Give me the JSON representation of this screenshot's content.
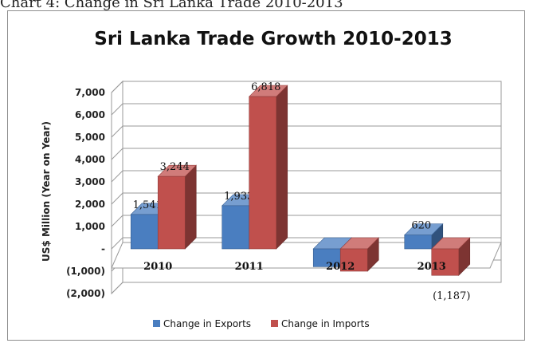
{
  "caption": "Chart 4: Change in Sri Lanka Trade 2010-2013",
  "chart_data": {
    "type": "bar",
    "title": "Sri Lanka Trade Growth 2010-2013",
    "xlabel": "",
    "ylabel": "US$ Million (Year on Year)",
    "categories": [
      "2010",
      "2011",
      "2012",
      "2013"
    ],
    "series": [
      {
        "name": "Change in Exports",
        "values": [
          1541,
          1933,
          -800,
          620
        ],
        "labels": [
          "1,541",
          "1,933",
          "",
          "620"
        ],
        "color": "#4a7ec0"
      },
      {
        "name": "Change in Imports",
        "values": [
          3244,
          6818,
          -1000,
          -1187
        ],
        "labels": [
          "3,244",
          "6,818",
          "",
          "(1,187)"
        ],
        "color": "#c0504d"
      }
    ],
    "ylim": [
      -2000,
      7000
    ],
    "yticks": [
      {
        "v": -2000,
        "label": "(2,000)"
      },
      {
        "v": -1000,
        "label": "(1,000)"
      },
      {
        "v": 0,
        "label": "-"
      },
      {
        "v": 1000,
        "label": "1,000"
      },
      {
        "v": 2000,
        "label": "2,000"
      },
      {
        "v": 3000,
        "label": "3,000"
      },
      {
        "v": 4000,
        "label": "4,000"
      },
      {
        "v": 5000,
        "label": "5,000"
      },
      {
        "v": 6000,
        "label": "6,000"
      },
      {
        "v": 7000,
        "label": "7,000"
      }
    ],
    "grid": true,
    "style": "3d-clustered",
    "legend_position": "bottom"
  }
}
